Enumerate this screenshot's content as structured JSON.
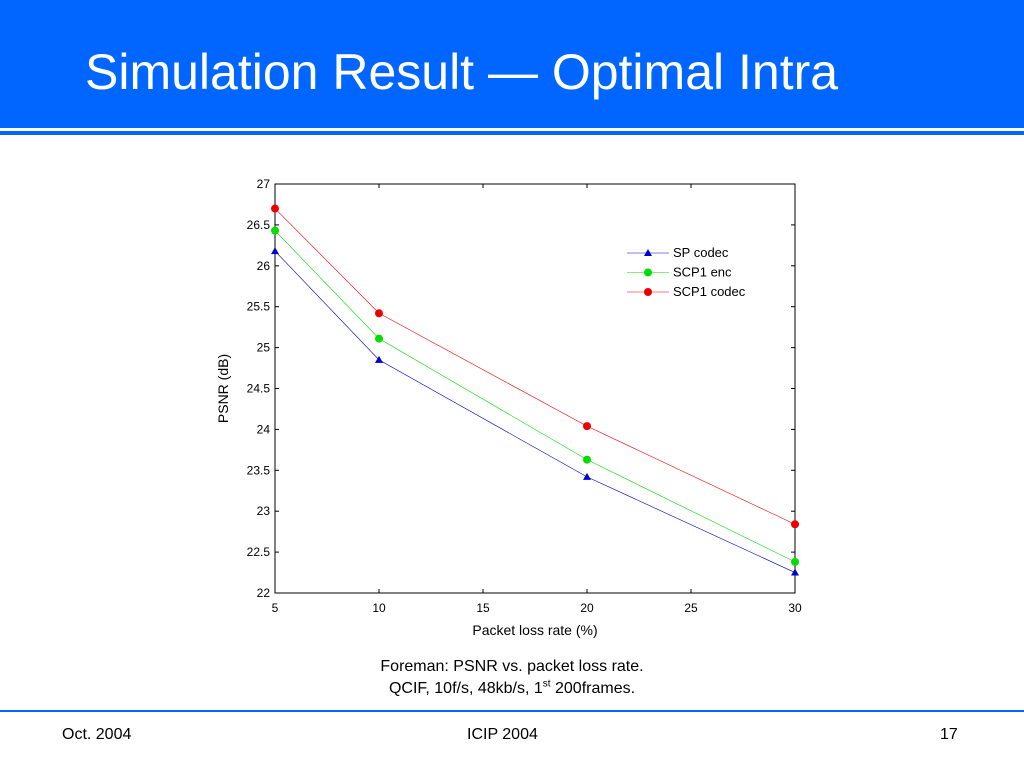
{
  "slide": {
    "title": "Simulation Result — Optimal Intra",
    "caption_line1": "Foreman: PSNR vs. packet loss rate.",
    "caption_line2_pre": "QCIF, 10f/s, 48kb/s, 1",
    "caption_line2_sup": "st",
    "caption_line2_post": " 200frames.",
    "footer_left": "Oct. 2004",
    "footer_center": "ICIP 2004",
    "footer_right": "17",
    "accent_color": "#0066ff"
  },
  "chart_data": {
    "type": "line",
    "xlabel": "Packet loss rate (%)",
    "ylabel": "PSNR (dB)",
    "xlim": [
      5,
      30
    ],
    "ylim": [
      22,
      27
    ],
    "x_ticks": [
      5,
      10,
      15,
      20,
      25,
      30
    ],
    "y_ticks": [
      22,
      22.5,
      23,
      23.5,
      24,
      24.5,
      25,
      25.5,
      26,
      26.5,
      27
    ],
    "x": [
      5,
      10,
      20,
      30
    ],
    "legend_position": "top-right",
    "grid": false,
    "series": [
      {
        "name": "SP codec",
        "marker": "triangle",
        "color": "#0000cc",
        "values": [
          26.18,
          24.85,
          23.42,
          22.25
        ]
      },
      {
        "name": "SCP1 enc",
        "marker": "circle",
        "color": "#00dd00",
        "values": [
          26.43,
          25.11,
          23.63,
          22.38
        ]
      },
      {
        "name": "SCP1 codec",
        "marker": "circle",
        "color": "#ee0000",
        "values": [
          26.7,
          25.42,
          24.04,
          22.84
        ]
      }
    ]
  }
}
